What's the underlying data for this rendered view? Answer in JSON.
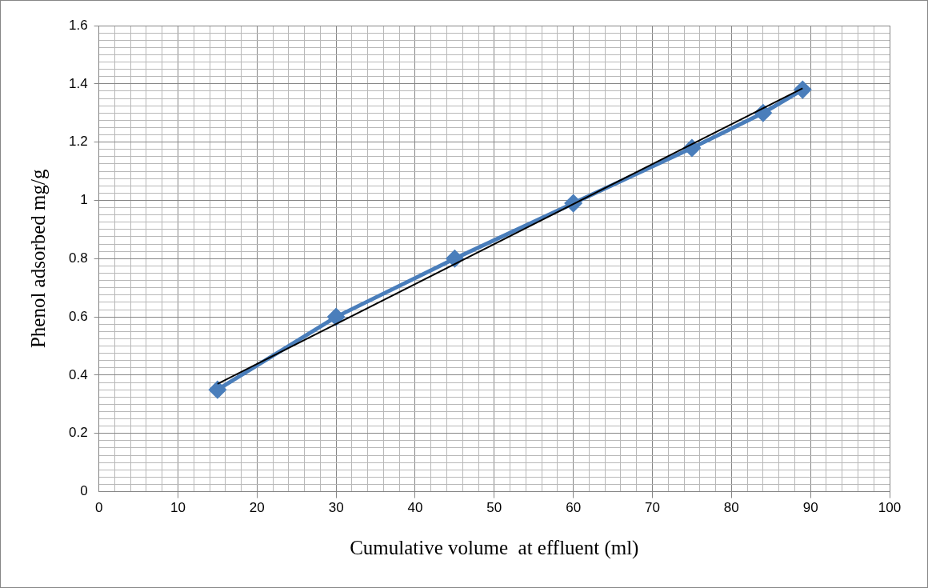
{
  "chart_data": {
    "type": "line",
    "xlabel": "Cumulative volume  at effluent (ml)",
    "ylabel": "Phenol adsorbed mg/g",
    "xlim": [
      0,
      100
    ],
    "ylim": [
      0,
      1.6
    ],
    "xticks": [
      0,
      {
        "value": 2,
        "label": null
      },
      {
        "value": 4,
        "label": null
      },
      {
        "value": 6,
        "label": null
      },
      {
        "value": 8,
        "label": null
      },
      10,
      {
        "value": 12,
        "label": null
      },
      {
        "value": 14,
        "label": null
      },
      {
        "value": 16,
        "label": null
      },
      {
        "value": 18,
        "label": null
      },
      20,
      {
        "value": 22,
        "label": null
      },
      {
        "value": 24,
        "label": null
      },
      {
        "value": 26,
        "label": null
      },
      {
        "value": 28,
        "label": null
      },
      30,
      {
        "value": 32,
        "label": null
      },
      {
        "value": 34,
        "label": null
      },
      {
        "value": 36,
        "label": null
      },
      {
        "value": 38,
        "label": null
      },
      40,
      {
        "value": 42,
        "label": null
      },
      {
        "value": 44,
        "label": null
      },
      {
        "value": 46,
        "label": null
      },
      {
        "value": 48,
        "label": null
      },
      50,
      {
        "value": 52,
        "label": null
      },
      {
        "value": 54,
        "label": null
      },
      {
        "value": 56,
        "label": null
      },
      {
        "value": 58,
        "label": null
      },
      60,
      {
        "value": 62,
        "label": null
      },
      {
        "value": 64,
        "label": null
      },
      {
        "value": 66,
        "label": null
      },
      {
        "value": 68,
        "label": null
      },
      70,
      {
        "value": 72,
        "label": null
      },
      {
        "value": 74,
        "label": null
      },
      {
        "value": 76,
        "label": null
      },
      {
        "value": 78,
        "label": null
      },
      80,
      {
        "value": 82,
        "label": null
      },
      {
        "value": 84,
        "label": null
      },
      {
        "value": 86,
        "label": null
      },
      {
        "value": 88,
        "label": null
      },
      90,
      {
        "value": 92,
        "label": null
      },
      {
        "value": 94,
        "label": null
      },
      {
        "value": 96,
        "label": null
      },
      {
        "value": 98,
        "label": null
      },
      100
    ],
    "yticks": [
      0,
      {
        "value": 0.025,
        "label": null
      },
      {
        "value": 0.05,
        "label": null
      },
      {
        "value": 0.075,
        "label": null
      },
      {
        "value": 0.1,
        "label": null
      },
      {
        "value": 0.125,
        "label": null
      },
      {
        "value": 0.15,
        "label": null
      },
      {
        "value": 0.175,
        "label": null
      },
      0.2,
      {
        "value": 0.225,
        "label": null
      },
      {
        "value": 0.25,
        "label": null
      },
      {
        "value": 0.275,
        "label": null
      },
      {
        "value": 0.3,
        "label": null
      },
      {
        "value": 0.325,
        "label": null
      },
      {
        "value": 0.35,
        "label": null
      },
      {
        "value": 0.375,
        "label": null
      },
      0.4,
      {
        "value": 0.425,
        "label": null
      },
      {
        "value": 0.45,
        "label": null
      },
      {
        "value": 0.475,
        "label": null
      },
      {
        "value": 0.5,
        "label": null
      },
      {
        "value": 0.525,
        "label": null
      },
      {
        "value": 0.55,
        "label": null
      },
      {
        "value": 0.575,
        "label": null
      },
      0.6,
      {
        "value": 0.625,
        "label": null
      },
      {
        "value": 0.65,
        "label": null
      },
      {
        "value": 0.675,
        "label": null
      },
      {
        "value": 0.7,
        "label": null
      },
      {
        "value": 0.725,
        "label": null
      },
      {
        "value": 0.75,
        "label": null
      },
      {
        "value": 0.775,
        "label": null
      },
      0.8,
      {
        "value": 0.825,
        "label": null
      },
      {
        "value": 0.85,
        "label": null
      },
      {
        "value": 0.875,
        "label": null
      },
      {
        "value": 0.9,
        "label": null
      },
      {
        "value": 0.925,
        "label": null
      },
      {
        "value": 0.95,
        "label": null
      },
      {
        "value": 0.975,
        "label": null
      },
      1,
      {
        "value": 1.025,
        "label": null
      },
      {
        "value": 1.05,
        "label": null
      },
      {
        "value": 1.075,
        "label": null
      },
      {
        "value": 1.1,
        "label": null
      },
      {
        "value": 1.125,
        "label": null
      },
      {
        "value": 1.15,
        "label": null
      },
      {
        "value": 1.175,
        "label": null
      },
      1.2,
      {
        "value": 1.225,
        "label": null
      },
      {
        "value": 1.25,
        "label": null
      },
      {
        "value": 1.275,
        "label": null
      },
      {
        "value": 1.3,
        "label": null
      },
      {
        "value": 1.325,
        "label": null
      },
      {
        "value": 1.35,
        "label": null
      },
      {
        "value": 1.375,
        "label": null
      },
      1.4,
      {
        "value": 1.425,
        "label": null
      },
      {
        "value": 1.45,
        "label": null
      },
      {
        "value": 1.475,
        "label": null
      },
      {
        "value": 1.5,
        "label": null
      },
      {
        "value": 1.525,
        "label": null
      },
      {
        "value": 1.55,
        "label": null
      },
      {
        "value": 1.575,
        "label": null
      },
      1.6
    ],
    "grid": true,
    "legend": false,
    "series": [
      {
        "type": "line",
        "color": "#4a7ebb",
        "marker": "diamond",
        "x": [
          15,
          30,
          45,
          60,
          75,
          84,
          89
        ],
        "values": [
          0.35,
          0.6,
          0.8,
          0.99,
          1.18,
          1.3,
          1.38
        ]
      },
      {
        "type": "line",
        "color": "#000000",
        "marker": "none",
        "x": [
          15,
          89
        ],
        "values": [
          0.37,
          1.385
        ]
      }
    ]
  }
}
